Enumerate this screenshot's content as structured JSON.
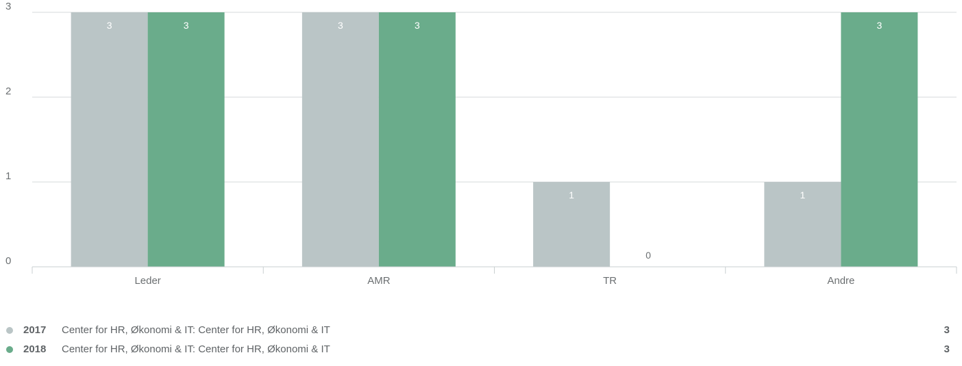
{
  "chart_data": {
    "type": "bar",
    "categories": [
      "Leder",
      "AMR",
      "TR",
      "Andre"
    ],
    "ylim": [
      0,
      3
    ],
    "yticks": [
      0,
      1,
      2,
      3
    ],
    "grid": true,
    "series": [
      {
        "name": "2017",
        "values": [
          3,
          3,
          1,
          1
        ],
        "color": "#bac5c6",
        "label_color": "#ffffff"
      },
      {
        "name": "2018",
        "values": [
          3,
          3,
          0,
          3
        ],
        "color": "#6aac8b",
        "label_color": "#ffffff"
      }
    ]
  },
  "legend": {
    "items": [
      {
        "year": "2017",
        "label": "Center for HR, Økonomi & IT: Center for HR, Økonomi & IT",
        "value": "3",
        "color": "#bac5c6"
      },
      {
        "year": "2018",
        "label": "Center for HR, Økonomi & IT: Center for HR, Økonomi & IT",
        "value": "3",
        "color": "#6aac8b"
      }
    ]
  }
}
